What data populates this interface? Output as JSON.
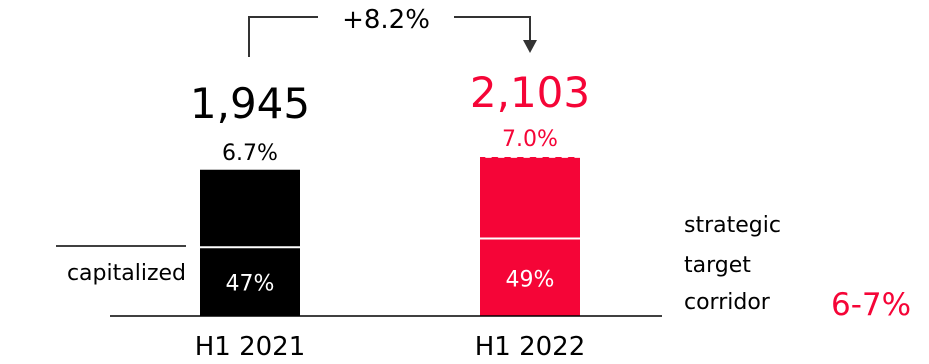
{
  "chart_data": {
    "type": "bar",
    "categories": [
      "H1 2021",
      "H1 2022"
    ],
    "series": [
      {
        "values": [
          1945,
          2103
        ],
        "ratio_labels": [
          "6.7%",
          "7.0%"
        ],
        "capitalized_share_labels": [
          "47%",
          "49%"
        ],
        "capitalized_share": [
          0.47,
          0.49
        ]
      }
    ],
    "value_labels": [
      "1,945",
      "2,103"
    ],
    "change_label": "+8.2%",
    "capitalized_label": "capitalized",
    "corridor": {
      "label_lines": [
        "strategic",
        "target",
        "corridor"
      ],
      "value": "6-7%"
    },
    "colors": {
      "bar_2021": "#000000",
      "bar_2022": "#f50537",
      "text_2022": "#f50537",
      "text_default": "#000000",
      "lines": "#333333"
    }
  }
}
